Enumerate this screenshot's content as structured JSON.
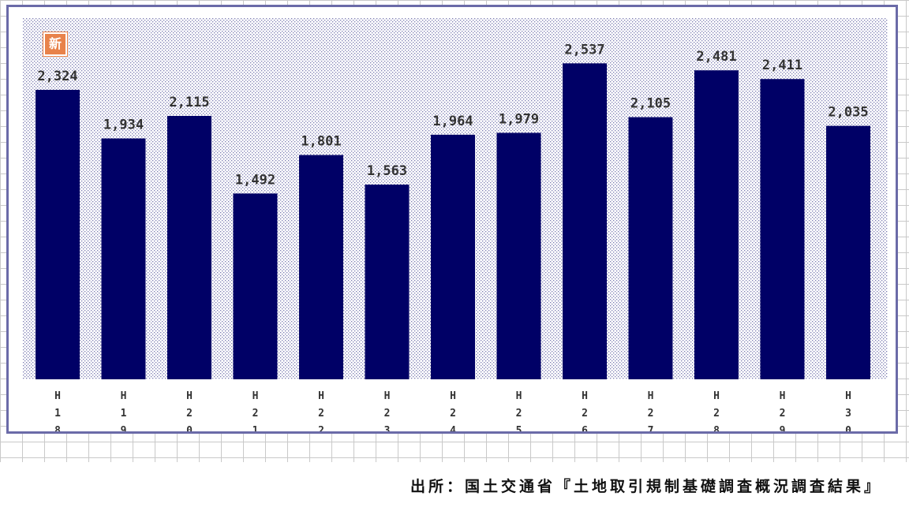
{
  "badge": {
    "label": "新",
    "color": "#e8824a"
  },
  "source": {
    "text": "出所：国土交通省『土地取引規制基礎調査概況調査結果』"
  },
  "colors": {
    "bar": "#000066",
    "frame": "#6b6ba8",
    "plot_dots": "#7a7ab0"
  },
  "chart_data": {
    "type": "bar",
    "title": "",
    "xlabel": "",
    "ylabel": "",
    "categories": [
      "H18",
      "H19",
      "H20",
      "H21",
      "H22",
      "H23",
      "H24",
      "H25",
      "H26",
      "H27",
      "H28",
      "H29",
      "H30"
    ],
    "category_labels_vertical": [
      [
        "H",
        "1",
        "8"
      ],
      [
        "H",
        "1",
        "9"
      ],
      [
        "H",
        "2",
        "0"
      ],
      [
        "H",
        "2",
        "1"
      ],
      [
        "H",
        "2",
        "2"
      ],
      [
        "H",
        "2",
        "3"
      ],
      [
        "H",
        "2",
        "4"
      ],
      [
        "H",
        "2",
        "5"
      ],
      [
        "H",
        "2",
        "6"
      ],
      [
        "H",
        "2",
        "7"
      ],
      [
        "H",
        "2",
        "8"
      ],
      [
        "H",
        "2",
        "9"
      ],
      [
        "H",
        "3",
        "0"
      ]
    ],
    "values": [
      2324,
      1934,
      2115,
      1492,
      1801,
      1563,
      1964,
      1979,
      2537,
      2105,
      2481,
      2411,
      2035
    ],
    "value_labels": [
      "2,324",
      "1,934",
      "2,115",
      "1,492",
      "1,801",
      "1,563",
      "1,964",
      "1,979",
      "2,537",
      "2,105",
      "2,481",
      "2,411",
      "2,035"
    ],
    "ylim": [
      0,
      2900
    ],
    "grid": false,
    "legend": "none"
  }
}
